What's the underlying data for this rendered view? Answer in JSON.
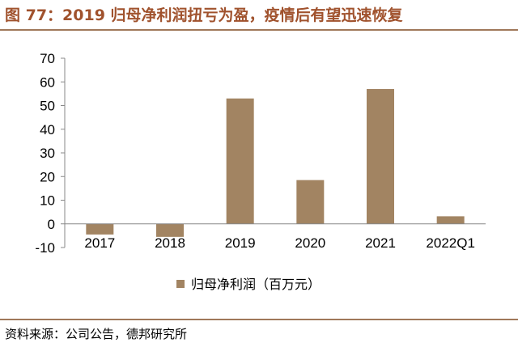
{
  "title": "图 77：2019 归母净利润扭亏为盈，疫情后有望迅速恢复",
  "source": "资料来源：公司公告，德邦研究所",
  "colors": {
    "title": "#a0522d",
    "bar": "#a28462",
    "rule": "#a0785a"
  },
  "chart_data": {
    "type": "bar",
    "categories": [
      "2017",
      "2018",
      "2019",
      "2020",
      "2021",
      "2022Q1"
    ],
    "series": [
      {
        "name": "归母净利润（百万元）",
        "values": [
          -4.5,
          -5.5,
          53,
          18.5,
          57,
          3.2
        ]
      }
    ],
    "ylim": [
      -10,
      70
    ],
    "yticks": [
      -10,
      0,
      10,
      20,
      30,
      40,
      50,
      60,
      70
    ],
    "ytick_labels": [
      "-10",
      "0",
      "10",
      "20",
      "30",
      "40",
      "50",
      "60",
      "70"
    ],
    "grid": false,
    "legend": "bottom"
  }
}
